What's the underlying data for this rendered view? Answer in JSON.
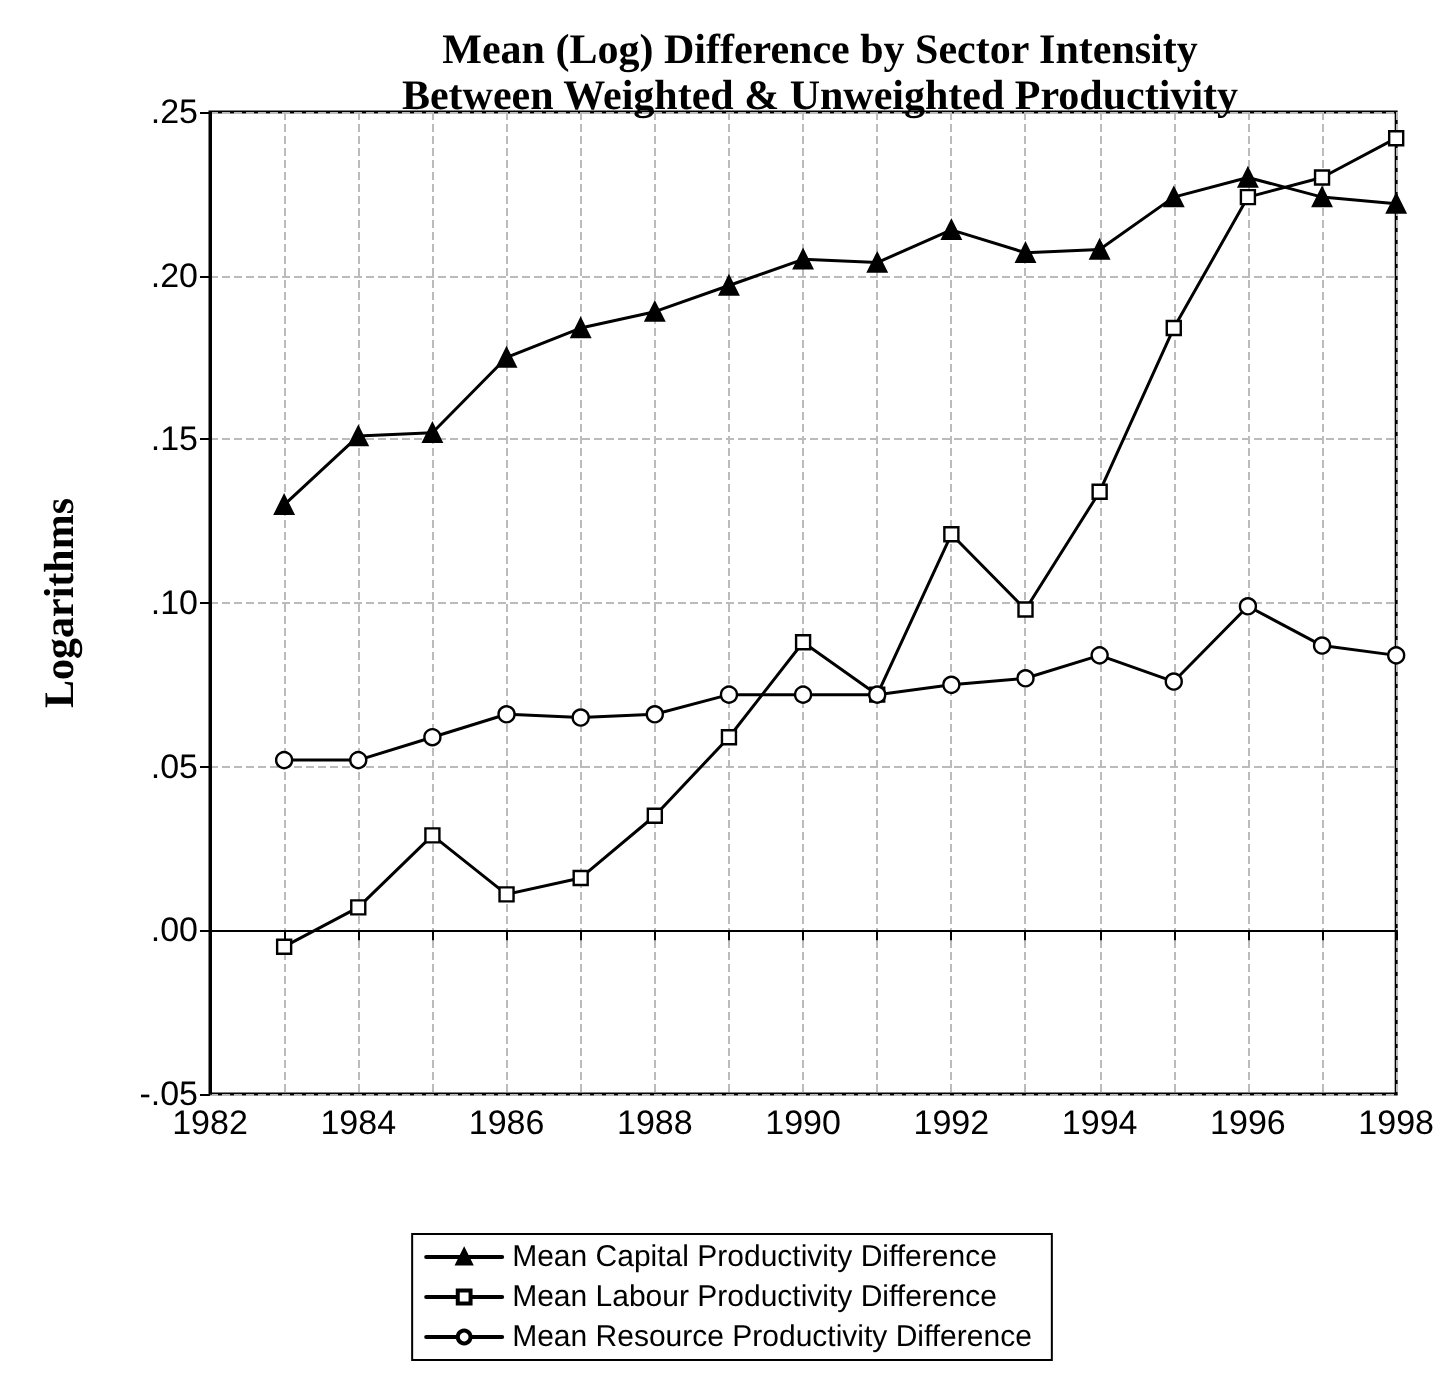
{
  "chart_data": {
    "type": "line",
    "title": "Mean (Log) Difference by Sector Intensity\nBetween Weighted & Unweighted Productivity",
    "ylabel": "Logarithms",
    "x": [
      1983,
      1984,
      1985,
      1986,
      1987,
      1988,
      1989,
      1990,
      1991,
      1992,
      1993,
      1994,
      1995,
      1996,
      1997,
      1998
    ],
    "series": [
      {
        "name": "Mean Capital Productivity Difference",
        "color": "#000000",
        "marker": "triangle",
        "values": [
          0.13,
          0.151,
          0.152,
          0.175,
          0.184,
          0.189,
          0.197,
          0.205,
          0.204,
          0.214,
          0.207,
          0.208,
          0.224,
          0.23,
          0.224,
          0.222
        ]
      },
      {
        "name": "Mean Labour Productivity Difference",
        "color": "#000000",
        "marker": "square",
        "values": [
          -0.005,
          0.007,
          0.029,
          0.011,
          0.016,
          0.035,
          0.059,
          0.088,
          0.072,
          0.121,
          0.098,
          0.134,
          0.184,
          0.224,
          0.23,
          0.242
        ]
      },
      {
        "name": "Mean Resource Productivity Difference",
        "color": "#000000",
        "marker": "circle",
        "values": [
          0.052,
          0.052,
          0.059,
          0.066,
          0.065,
          0.066,
          0.072,
          0.072,
          0.072,
          0.075,
          0.077,
          0.084,
          0.076,
          0.099,
          0.087,
          0.084
        ]
      }
    ],
    "xlim": [
      1982,
      1998
    ],
    "xticks": [
      1982,
      1984,
      1986,
      1988,
      1990,
      1992,
      1994,
      1996,
      1998
    ],
    "ylim": [
      -0.05,
      0.25
    ],
    "yticks": [
      {
        "value": -0.05,
        "label": "-.05"
      },
      {
        "value": 0,
        "label": ".00"
      },
      {
        "value": 0.05,
        "label": ".05"
      },
      {
        "value": 0.1,
        "label": ".10"
      },
      {
        "value": 0.15,
        "label": ".15"
      },
      {
        "value": 0.2,
        "label": ".20"
      },
      {
        "value": 0.25,
        "label": ".25"
      }
    ],
    "grid": true,
    "legend": "bottom",
    "line_style": "solid"
  }
}
